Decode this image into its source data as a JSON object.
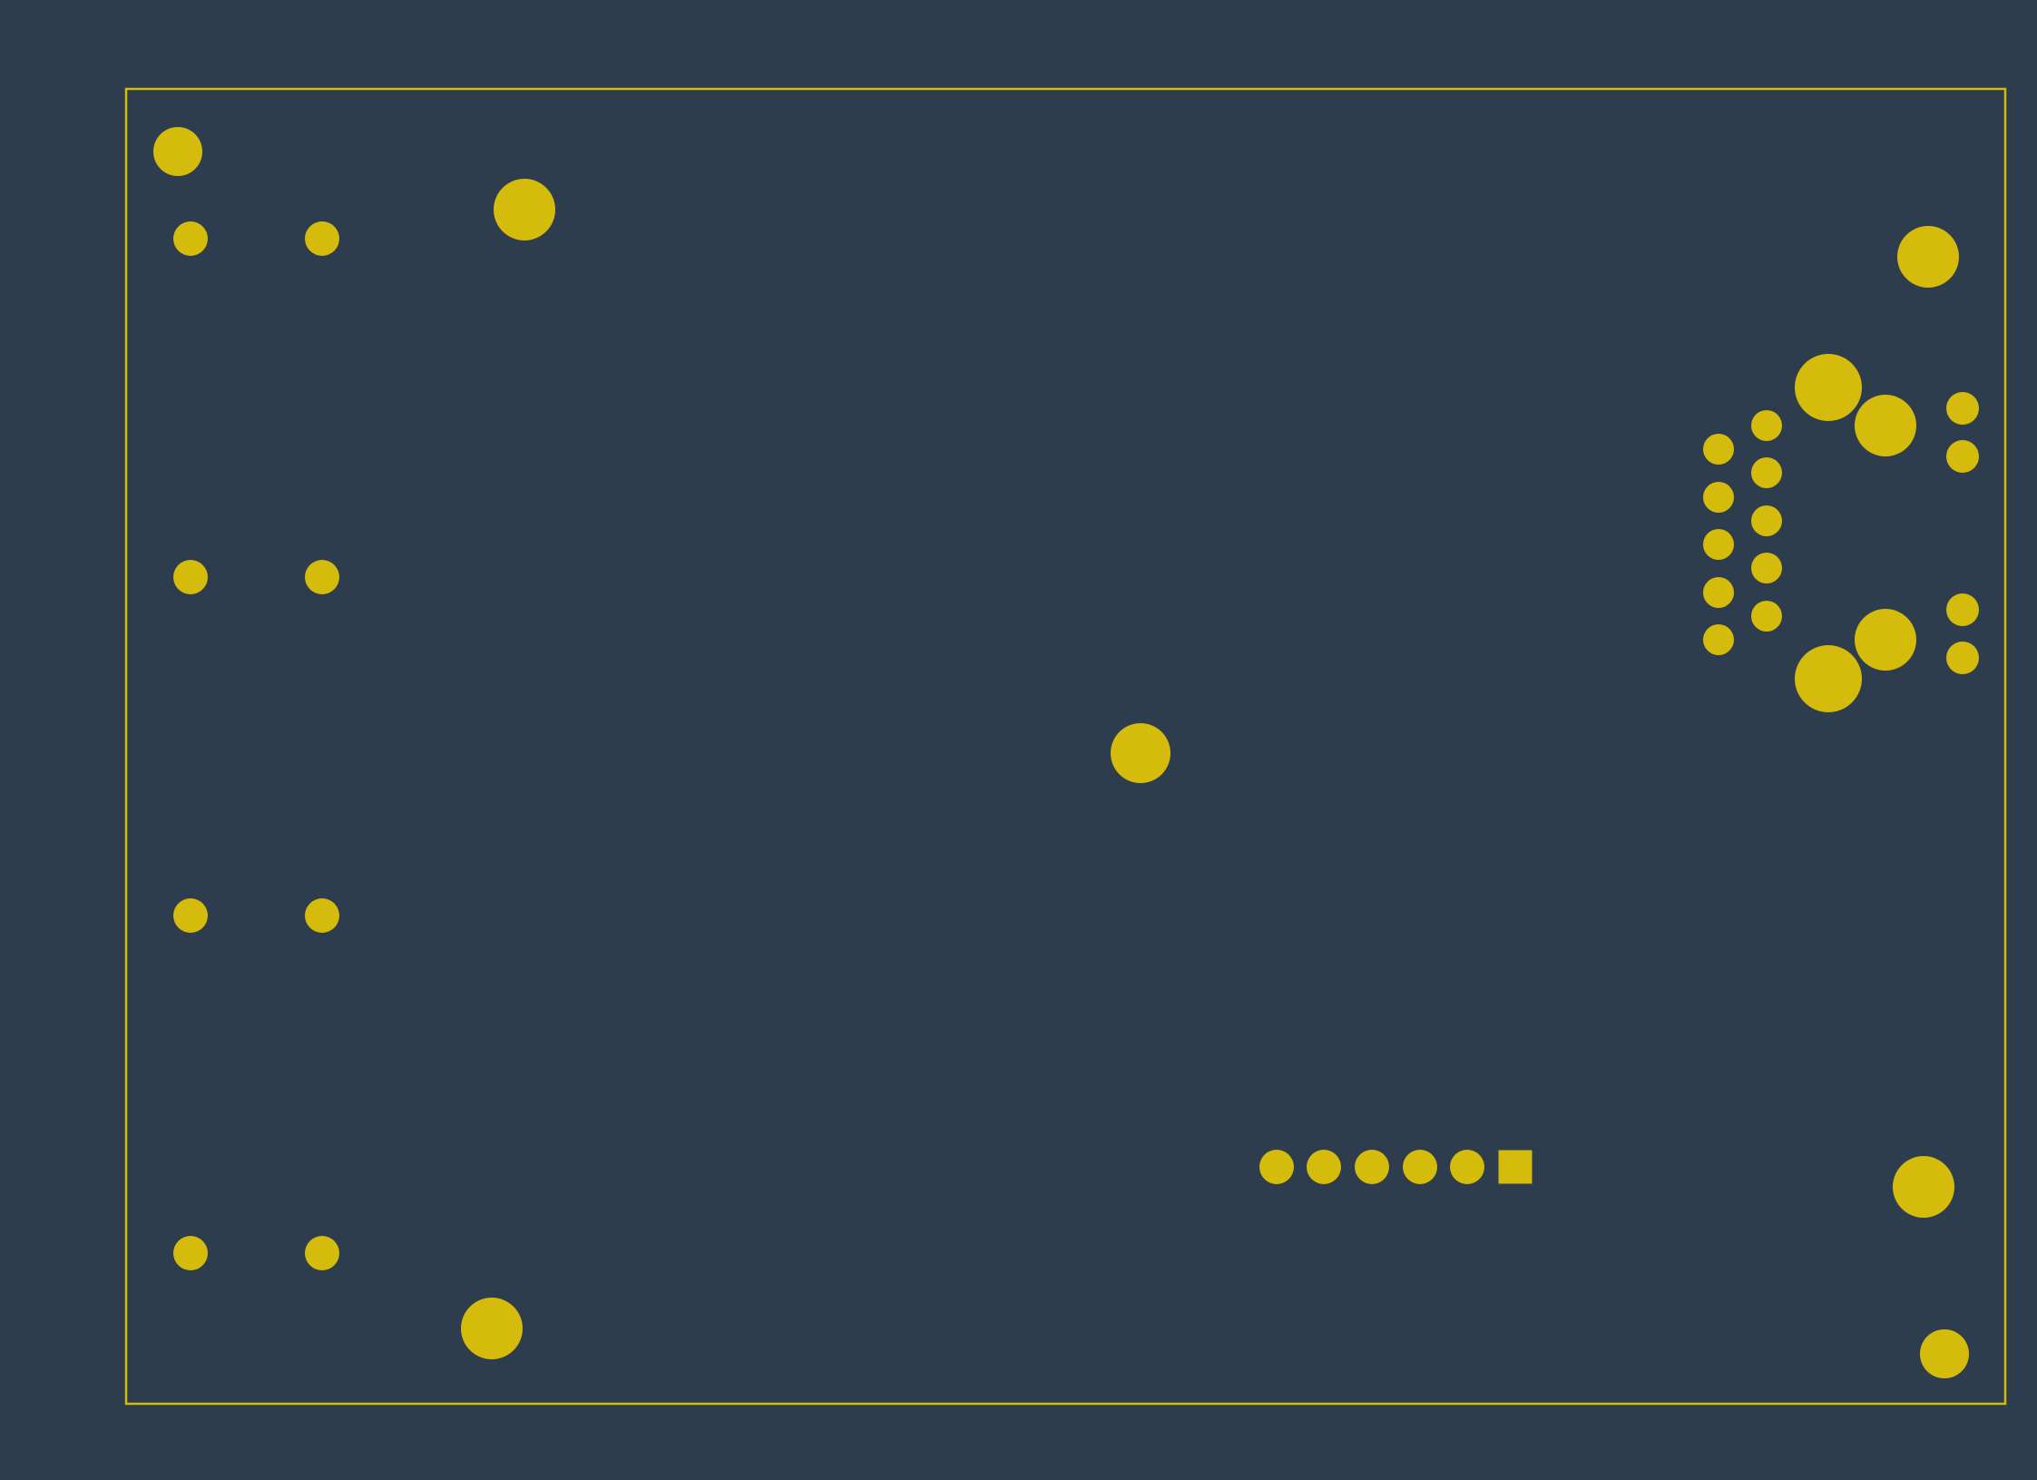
{
  "view": {
    "background": "#2e3d4e",
    "copper_color": "#d4bb0c",
    "outline_color": "#d4bb0c",
    "layer": "copper"
  },
  "board": {
    "outline": "board-edge-cuts",
    "pad_groups": [
      {
        "name": "mounting-hole-top-left",
        "shape": "circle",
        "size": "medium",
        "count": 1
      },
      {
        "name": "mounting-hole-top",
        "shape": "circle",
        "size": "large",
        "count": 1
      },
      {
        "name": "mounting-hole-top-right",
        "shape": "circle",
        "size": "large",
        "count": 1
      },
      {
        "name": "mounting-hole-center",
        "shape": "circle",
        "size": "large",
        "count": 1
      },
      {
        "name": "mounting-hole-bottom",
        "shape": "circle",
        "size": "large",
        "count": 1
      },
      {
        "name": "mounting-hole-bottom-right",
        "shape": "circle",
        "size": "large",
        "count": 1
      },
      {
        "name": "mounting-hole-corner-bottom-right",
        "shape": "circle",
        "size": "medium",
        "count": 1
      },
      {
        "name": "left-pad-array",
        "shape": "circle",
        "size": "small",
        "count": 8
      },
      {
        "name": "connector-pin-header",
        "shape": "circle",
        "size": "small",
        "count": 5
      },
      {
        "name": "connector-pin-1-square",
        "shape": "square",
        "size": "small",
        "count": 1
      },
      {
        "name": "rj45-jack-signal-pins",
        "shape": "circle",
        "size": "small",
        "count": 10
      },
      {
        "name": "rj45-jack-shield-pins",
        "shape": "circle",
        "size": "large",
        "count": 4
      },
      {
        "name": "rj45-jack-led-pins",
        "shape": "circle",
        "size": "small",
        "count": 4
      }
    ]
  }
}
